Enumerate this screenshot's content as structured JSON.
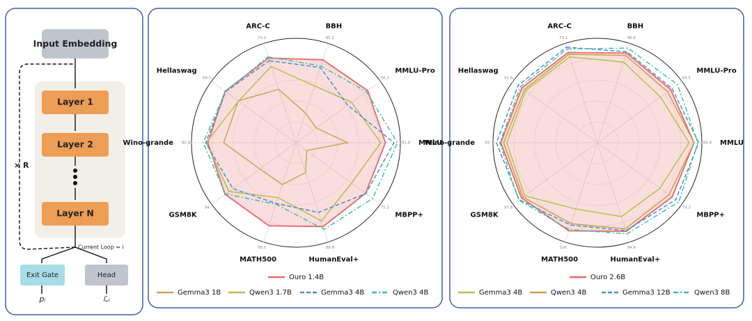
{
  "diagram": {
    "input": "Input Embedding",
    "layers": [
      "Layer 1",
      "Layer 2",
      "Layer N"
    ],
    "repeat": "× R",
    "loop": "Current Loop = i",
    "exit_gate": "Exit Gate",
    "head": "Head",
    "exit_output": "pᵢ",
    "head_output": "ℒᵢ"
  },
  "chart_data": [
    {
      "type": "radar",
      "categories": [
        "ARC-C",
        "BBH",
        "MMLU-Pro",
        "MMLU",
        "MBPP+",
        "HumanEval+",
        "MATH500",
        "GSM8K",
        "Wino-grande",
        "Hellaswag"
      ],
      "axis_max": [
        73.1,
        95.2,
        56.5,
        81.8,
        75.2,
        89.9,
        98.5,
        94.0,
        80.8,
        89.1
      ],
      "series": [
        {
          "name": "Ouro 1.4B",
          "color": "#e8676b",
          "dash": "solid",
          "fill": true,
          "values": [
            62.3,
            79.5,
            48.0,
            70.1,
            62.0,
            75.8,
            82.4,
            78.9,
            68.2,
            74.7
          ]
        },
        {
          "name": "Gemma3 1B",
          "color": "#caa45c",
          "dash": "solid",
          "fill": false,
          "values": [
            39.3,
            28.4,
            13.6,
            40.5,
            9.5,
            26.9,
            41.6,
            40.1,
            55.9,
            60.8
          ]
        },
        {
          "name": "Qwen3 1.7B",
          "color": "#b8bb4c",
          "dash": "solid",
          "fill": false,
          "values": [
            56.1,
            54.5,
            37.2,
            66.4,
            49.5,
            70.7,
            54.4,
            74.5,
            69.4,
            60.5
          ]
        },
        {
          "name": "Gemma3 4B",
          "color": "#4a8fcb",
          "dash": "dashed",
          "fill": false,
          "values": [
            60.4,
            72.1,
            34.6,
            76.8,
            62.3,
            63.0,
            60.3,
            70.2,
            69.8,
            74.1
          ]
        },
        {
          "name": "Qwen3 4B",
          "color": "#3fc0a6",
          "dash": "dashdot",
          "fill": false,
          "values": [
            63.2,
            73.6,
            47.1,
            79.5,
            68.3,
            78.4,
            61.0,
            78.5,
            71.7,
            74.4
          ]
        }
      ]
    },
    {
      "type": "radar",
      "categories": [
        "ARC-C",
        "BBH",
        "MMLU-Pro",
        "MMLU",
        "MBPP+",
        "HumanEval+",
        "MATH500",
        "GSM8K",
        "Wino-grande",
        "Hellaswag"
      ],
      "axis_max": [
        73.1,
        96.6,
        64.5,
        86.8,
        79.3,
        94.9,
        105.0,
        97.8,
        83.0,
        91.6
      ],
      "series": [
        {
          "name": "Ouro 2.6B",
          "color": "#e8676b",
          "dash": "solid",
          "fill": true,
          "values": [
            66.4,
            87.2,
            55.9,
            80.3,
            70.1,
            84.6,
            93.1,
            87.9,
            76.8,
            81.9
          ]
        },
        {
          "name": "Gemma3 4B",
          "color": "#b6c24a",
          "dash": "solid",
          "fill": false,
          "values": [
            63.2,
            78.4,
            48.1,
            76.2,
            58.7,
            70.6,
            70.0,
            84.4,
            72.0,
            77.7
          ]
        },
        {
          "name": "Qwen3 4B",
          "color": "#caa045",
          "dash": "solid",
          "fill": false,
          "values": [
            65.1,
            84.9,
            53.6,
            80.4,
            67.2,
            82.2,
            85.5,
            86.3,
            74.5,
            79.2
          ]
        },
        {
          "name": "Gemma3 12B",
          "color": "#4a8fcb",
          "dash": "dashed",
          "fill": false,
          "values": [
            70.3,
            88.5,
            57.0,
            84.2,
            73.5,
            84.0,
            87.0,
            90.6,
            80.3,
            85.8
          ]
        },
        {
          "name": "Qwen3 8B",
          "color": "#3fc0a6",
          "dash": "dashdot",
          "fill": false,
          "values": [
            69.0,
            92.0,
            61.1,
            83.5,
            76.4,
            87.1,
            91.8,
            91.2,
            77.6,
            83.5
          ]
        }
      ]
    }
  ]
}
